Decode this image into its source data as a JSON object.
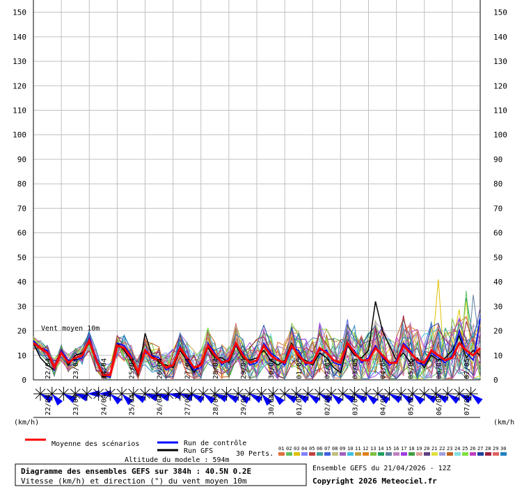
{
  "chart_data": {
    "type": "line",
    "title": "Diagramme des ensembles GEFS sur 384h : 40.5N 0.2E",
    "subtitle": "Vitesse (km/h) et direction (°) du vent moyen 10m",
    "plot_label": "Vent moyen 10m",
    "unit_left": "(km/h)",
    "unit_right": "(km/h)",
    "altitude": "Altitude du modele : 594m",
    "run_info": "Ensemble GEFS du 21/04/2026 - 12Z",
    "copyright": "Copyright 2026 Meteociel.fr",
    "ylim": [
      0,
      155
    ],
    "y_ticks": [
      0,
      10,
      20,
      30,
      40,
      50,
      60,
      70,
      80,
      90,
      100,
      110,
      120,
      130,
      140,
      150
    ],
    "xlim": [
      0,
      384
    ],
    "dates": [
      "22/04",
      "23/04",
      "24/04",
      "25/04",
      "26/04",
      "27/04",
      "28/04",
      "29/04",
      "30/04",
      "01/05",
      "02/05",
      "03/05",
      "04/05",
      "05/05",
      "06/05",
      "07/05"
    ],
    "legend": {
      "mean": "Moyenne des scénarios",
      "control": "Run de contrôle",
      "gfs": "Run GFS",
      "perts": "30 Perts."
    },
    "pert_labels": [
      "01",
      "02",
      "03",
      "04",
      "05",
      "06",
      "07",
      "08",
      "09",
      "10",
      "11",
      "12",
      "13",
      "14",
      "15",
      "16",
      "17",
      "18",
      "19",
      "20",
      "21",
      "22",
      "23",
      "24",
      "25",
      "26",
      "27",
      "28",
      "29",
      "30"
    ],
    "pert_colors": [
      "#e0703a",
      "#60c060",
      "#e0c000",
      "#8080ff",
      "#c04040",
      "#40a0a0",
      "#4060e0",
      "#c0c080",
      "#a060c0",
      "#40c0e0",
      "#c0a040",
      "#e08020",
      "#80c040",
      "#20a060",
      "#6080a0",
      "#c080c0",
      "#a040e0",
      "#40a040",
      "#e0a0a0",
      "#604080",
      "#e0e040",
      "#a0a0e0",
      "#c06020",
      "#80e0e0",
      "#80e040",
      "#c040c0",
      "#2040a0",
      "#a02040",
      "#e06060",
      "#2080c0"
    ],
    "series": [
      {
        "name": "Moyenne des scénarios",
        "color": "#ff0000",
        "x": [
          0,
          6,
          12,
          18,
          24,
          30,
          36,
          42,
          48,
          54,
          60,
          66,
          72,
          78,
          84,
          90,
          96,
          102,
          108,
          114,
          120,
          126,
          132,
          138,
          144,
          150,
          156,
          162,
          168,
          174,
          180,
          186,
          192,
          198,
          204,
          210,
          216,
          222,
          228,
          234,
          240,
          246,
          252,
          258,
          264,
          270,
          276,
          282,
          288,
          294,
          300,
          306,
          312,
          318,
          324,
          330,
          336,
          342,
          348,
          354,
          360,
          366,
          372,
          378,
          384
        ],
        "values": [
          15,
          13,
          11,
          5,
          11,
          7,
          9,
          10,
          16,
          8,
          2,
          2,
          14,
          13,
          9,
          3,
          12,
          9,
          8,
          5,
          6,
          13,
          9,
          5,
          6,
          14,
          10,
          7,
          8,
          15,
          10,
          7,
          8,
          14,
          10,
          8,
          7,
          14,
          10,
          7,
          7,
          13,
          11,
          8,
          7,
          15,
          11,
          8,
          8,
          13,
          10,
          7,
          7,
          14,
          11,
          8,
          7,
          12,
          10,
          8,
          9,
          15,
          12,
          10,
          13
        ]
      },
      {
        "name": "Run de contrôle",
        "color": "#0000ff",
        "x": [
          0,
          6,
          12,
          18,
          24,
          30,
          36,
          42,
          48,
          54,
          60,
          66,
          72,
          78,
          84,
          90,
          96,
          102,
          108,
          114,
          120,
          126,
          132,
          138,
          144,
          150,
          156,
          162,
          168,
          174,
          180,
          186,
          192,
          198,
          204,
          210,
          216,
          222,
          228,
          234,
          240,
          246,
          252,
          258,
          264,
          270,
          276,
          282,
          288,
          294,
          300,
          306,
          312,
          318,
          324,
          330,
          336,
          342,
          348,
          354,
          360,
          366,
          372,
          378,
          384
        ],
        "values": [
          16,
          13,
          12,
          4,
          12,
          8,
          8,
          9,
          17,
          9,
          2,
          1,
          15,
          14,
          10,
          3,
          11,
          10,
          9,
          4,
          6,
          14,
          8,
          4,
          5,
          15,
          11,
          6,
          9,
          14,
          11,
          6,
          7,
          15,
          11,
          9,
          6,
          13,
          12,
          6,
          8,
          12,
          12,
          7,
          6,
          14,
          12,
          7,
          9,
          14,
          9,
          6,
          8,
          15,
          12,
          7,
          6,
          11,
          9,
          7,
          10,
          20,
          11,
          8,
          25
        ]
      },
      {
        "name": "Run GFS",
        "color": "#000000",
        "x": [
          0,
          6,
          12,
          18,
          24,
          30,
          36,
          42,
          48,
          54,
          60,
          66,
          72,
          78,
          84,
          90,
          96,
          102,
          108,
          114,
          120,
          126,
          132,
          138,
          144,
          150,
          156,
          162,
          168,
          174,
          180,
          186,
          192,
          198,
          204,
          210,
          216,
          222,
          228,
          234,
          240,
          246,
          252,
          258,
          264,
          270,
          276,
          282,
          288,
          294,
          300,
          306,
          312,
          318,
          324,
          330,
          336,
          342,
          348,
          354,
          360,
          366,
          372,
          378,
          384
        ],
        "values": [
          15,
          9,
          6,
          4,
          12,
          6,
          10,
          11,
          15,
          9,
          1,
          2,
          15,
          12,
          8,
          2,
          19,
          10,
          7,
          6,
          5,
          12,
          8,
          3,
          7,
          13,
          9,
          9,
          7,
          14,
          9,
          8,
          9,
          12,
          8,
          6,
          8,
          15,
          9,
          8,
          6,
          11,
          9,
          5,
          3,
          14,
          10,
          9,
          12,
          32,
          20,
          14,
          8,
          11,
          7,
          9,
          5,
          10,
          8,
          9,
          12,
          18,
          9,
          12,
          10
        ]
      }
    ],
    "perturbations_shape": {
      "x_step": 6,
      "count": 30
    },
    "wind_direction_deg": [
      300,
      320,
      300,
      290,
      270,
      270,
      310,
      315,
      300,
      290,
      290,
      280,
      290,
      300,
      305,
      295,
      300,
      305,
      300,
      320,
      315,
      300,
      300,
      305,
      300,
      310,
      300,
      300,
      310,
      305,
      300,
      305,
      310,
      300,
      300,
      305,
      300,
      310
    ]
  }
}
